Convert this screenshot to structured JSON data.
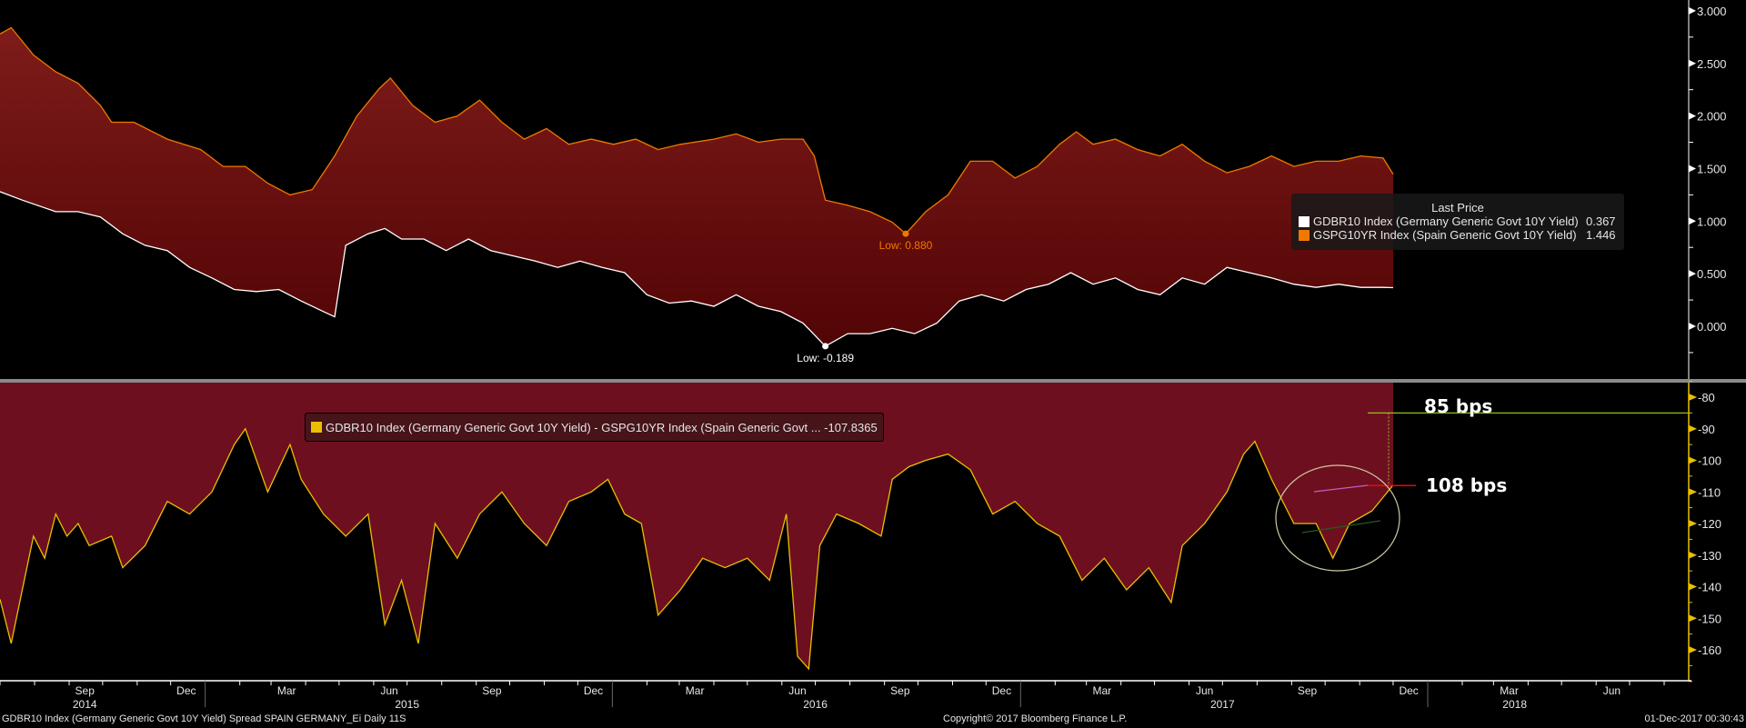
{
  "chart_data": [
    {
      "type": "area",
      "panel": "upper",
      "ylim": [
        -0.5,
        3.1
      ],
      "y_ticks": [
        3.0,
        2.5,
        2.0,
        1.5,
        1.0,
        0.5,
        0.0
      ],
      "y_tick_labels": [
        "3.000",
        "2.500",
        "2.000",
        "1.500",
        "1.000",
        "0.500",
        "0.000"
      ],
      "fill": "between series",
      "legend": {
        "title": "Last Price",
        "placement": "right",
        "entries": [
          {
            "label": "GDBR10 Index (Germany Generic Govt 10Y Yield)",
            "value": "0.367",
            "color": "#ffffff"
          },
          {
            "label": "GSPG10YR Index (Spain Generic Govt 10Y Yield)",
            "value": "1.446",
            "color": "#f07800"
          }
        ]
      },
      "annotations": [
        {
          "text": "Low: 0.880",
          "series": "GSPG10YR Index (Spain Generic Govt 10Y Yield)",
          "date": "2016-09-20",
          "value": 0.88
        },
        {
          "text": "Low: -0.189",
          "series": "GDBR10 Index (Germany Generic Govt 10Y Yield)",
          "date": "2016-07-10",
          "value": -0.189
        }
      ],
      "series": [
        {
          "name": "GSPG10YR Index (Spain Generic Govt 10Y Yield)",
          "color": "#f07800",
          "dates": [
            "2014-07-01",
            "2014-07-11",
            "2014-07-31",
            "2014-08-20",
            "2014-09-09",
            "2014-09-29",
            "2014-10-09",
            "2014-10-29",
            "2014-11-28",
            "2014-12-28",
            "2015-01-17",
            "2015-02-06",
            "2015-02-26",
            "2015-03-18",
            "2015-04-07",
            "2015-04-27",
            "2015-05-17",
            "2015-06-06",
            "2015-06-16",
            "2015-07-06",
            "2015-07-26",
            "2015-08-15",
            "2015-09-04",
            "2015-09-24",
            "2015-10-14",
            "2015-11-03",
            "2015-11-23",
            "2015-12-13",
            "2016-01-02",
            "2016-01-22",
            "2016-02-11",
            "2016-03-02",
            "2016-04-01",
            "2016-04-21",
            "2016-05-11",
            "2016-05-31",
            "2016-06-20",
            "2016-06-30",
            "2016-07-10",
            "2016-07-30",
            "2016-08-19",
            "2016-09-08",
            "2016-09-20",
            "2016-10-08",
            "2016-10-28",
            "2016-11-17",
            "2016-12-07",
            "2016-12-27",
            "2017-01-16",
            "2017-02-05",
            "2017-02-20",
            "2017-03-07",
            "2017-03-27",
            "2017-04-16",
            "2017-05-06",
            "2017-05-26",
            "2017-06-15",
            "2017-07-05",
            "2017-07-25",
            "2017-08-14",
            "2017-09-03",
            "2017-09-23",
            "2017-10-13",
            "2017-11-02",
            "2017-11-22",
            "2017-12-01"
          ],
          "values": [
            2.78,
            2.84,
            2.58,
            2.42,
            2.31,
            2.1,
            1.94,
            1.94,
            1.78,
            1.68,
            1.52,
            1.52,
            1.36,
            1.25,
            1.3,
            1.62,
            2.0,
            2.26,
            2.36,
            2.1,
            1.94,
            2.0,
            2.15,
            1.94,
            1.78,
            1.88,
            1.73,
            1.78,
            1.73,
            1.78,
            1.68,
            1.73,
            1.78,
            1.83,
            1.75,
            1.78,
            1.78,
            1.62,
            1.2,
            1.15,
            1.09,
            0.99,
            0.88,
            1.09,
            1.25,
            1.57,
            1.57,
            1.41,
            1.52,
            1.73,
            1.85,
            1.73,
            1.78,
            1.68,
            1.62,
            1.73,
            1.57,
            1.46,
            1.52,
            1.62,
            1.52,
            1.57,
            1.57,
            1.62,
            1.6,
            1.446
          ]
        },
        {
          "name": "GDBR10 Index (Germany Generic Govt 10Y Yield)",
          "color": "#ffffff",
          "dates": [
            "2014-07-01",
            "2014-07-21",
            "2014-08-20",
            "2014-09-09",
            "2014-09-29",
            "2014-10-19",
            "2014-11-08",
            "2014-11-28",
            "2014-12-18",
            "2015-01-07",
            "2015-01-27",
            "2015-02-16",
            "2015-03-08",
            "2015-03-28",
            "2015-04-17",
            "2015-04-27",
            "2015-05-07",
            "2015-05-27",
            "2015-06-11",
            "2015-06-26",
            "2015-07-16",
            "2015-08-05",
            "2015-08-25",
            "2015-09-14",
            "2015-10-04",
            "2015-10-24",
            "2015-11-13",
            "2015-12-03",
            "2015-12-23",
            "2016-01-12",
            "2016-02-01",
            "2016-02-21",
            "2016-03-12",
            "2016-04-01",
            "2016-04-21",
            "2016-05-11",
            "2016-05-31",
            "2016-06-20",
            "2016-07-10",
            "2016-07-30",
            "2016-08-19",
            "2016-09-08",
            "2016-09-28",
            "2016-10-18",
            "2016-11-07",
            "2016-11-27",
            "2016-12-17",
            "2017-01-06",
            "2017-01-26",
            "2017-02-15",
            "2017-03-07",
            "2017-03-27",
            "2017-04-16",
            "2017-05-06",
            "2017-05-26",
            "2017-06-15",
            "2017-07-05",
            "2017-07-25",
            "2017-08-14",
            "2017-09-03",
            "2017-09-23",
            "2017-10-13",
            "2017-11-02",
            "2017-11-22",
            "2017-12-01"
          ],
          "values": [
            1.28,
            1.2,
            1.09,
            1.09,
            1.04,
            0.88,
            0.77,
            0.72,
            0.56,
            0.46,
            0.35,
            0.33,
            0.35,
            0.24,
            0.14,
            0.09,
            0.77,
            0.88,
            0.93,
            0.83,
            0.83,
            0.72,
            0.83,
            0.72,
            0.67,
            0.62,
            0.56,
            0.62,
            0.56,
            0.51,
            0.3,
            0.22,
            0.24,
            0.19,
            0.3,
            0.19,
            0.14,
            0.03,
            -0.189,
            -0.07,
            -0.07,
            -0.02,
            -0.07,
            0.03,
            0.24,
            0.3,
            0.24,
            0.35,
            0.4,
            0.51,
            0.4,
            0.46,
            0.35,
            0.3,
            0.46,
            0.4,
            0.56,
            0.51,
            0.46,
            0.4,
            0.37,
            0.4,
            0.37,
            0.37,
            0.367
          ]
        }
      ]
    },
    {
      "type": "area",
      "panel": "lower",
      "ylim": [
        -170,
        -76
      ],
      "y_ticks": [
        -80,
        -90,
        -100,
        -110,
        -120,
        -130,
        -140,
        -150,
        -160
      ],
      "y_tick_labels": [
        "-80",
        "-90",
        "-100",
        "-110",
        "-120",
        "-130",
        "-140",
        "-150",
        "-160"
      ],
      "legend": {
        "placement": "top-left",
        "entries": [
          {
            "label": "GDBR10 Index (Germany Generic Govt 10Y Yield) - GSPG10YR Index (Spain Generic Govt ...",
            "value": "-107.8365",
            "color": "#e8c000"
          }
        ]
      },
      "annotations": [
        {
          "text": "85 bps",
          "value": -85,
          "type": "horizontal-line",
          "color": "#8fc21f"
        },
        {
          "text": "108 bps",
          "value": -108,
          "type": "horizontal-line",
          "color": "#ff0000"
        }
      ],
      "series": [
        {
          "name": "GDBR10 Index (Germany Generic Govt 10Y Yield) - GSPG10YR Index (Spain Generic Govt ...",
          "color": "#e8c000",
          "fill": "#6e0f20",
          "dates": [
            "2014-07-01",
            "2014-07-11",
            "2014-07-21",
            "2014-07-31",
            "2014-08-10",
            "2014-08-20",
            "2014-08-30",
            "2014-09-09",
            "2014-09-19",
            "2014-10-09",
            "2014-10-19",
            "2014-11-08",
            "2014-11-28",
            "2014-12-18",
            "2015-01-07",
            "2015-01-27",
            "2015-02-06",
            "2015-02-26",
            "2015-03-18",
            "2015-03-28",
            "2015-04-17",
            "2015-05-07",
            "2015-05-27",
            "2015-06-11",
            "2015-06-26",
            "2015-07-11",
            "2015-07-26",
            "2015-08-15",
            "2015-09-04",
            "2015-09-24",
            "2015-10-14",
            "2015-11-03",
            "2015-11-23",
            "2015-12-13",
            "2015-12-28",
            "2016-01-12",
            "2016-01-27",
            "2016-02-11",
            "2016-03-02",
            "2016-03-22",
            "2016-04-11",
            "2016-05-01",
            "2016-05-21",
            "2016-06-05",
            "2016-06-15",
            "2016-06-25",
            "2016-07-05",
            "2016-07-20",
            "2016-08-09",
            "2016-08-29",
            "2016-09-08",
            "2016-09-23",
            "2016-10-08",
            "2016-10-28",
            "2016-11-17",
            "2016-12-07",
            "2016-12-27",
            "2017-01-16",
            "2017-02-05",
            "2017-02-25",
            "2017-03-17",
            "2017-04-06",
            "2017-04-26",
            "2017-05-16",
            "2017-05-26",
            "2017-06-15",
            "2017-07-05",
            "2017-07-20",
            "2017-07-30",
            "2017-08-14",
            "2017-09-03",
            "2017-09-23",
            "2017-10-08",
            "2017-10-23",
            "2017-11-12",
            "2017-12-01"
          ],
          "values": [
            -144,
            -158,
            -141,
            -124,
            -131,
            -117,
            -124,
            -120,
            -127,
            -124,
            -134,
            -127,
            -113,
            -117,
            -110,
            -95,
            -90,
            -110,
            -95,
            -106,
            -117,
            -124,
            -117,
            -152,
            -138,
            -158,
            -120,
            -131,
            -117,
            -110,
            -120,
            -127,
            -113,
            -110,
            -106,
            -117,
            -120,
            -149,
            -141,
            -131,
            -134,
            -131,
            -138,
            -117,
            -162,
            -166,
            -127,
            -117,
            -120,
            -124,
            -106,
            -102,
            -100,
            -98,
            -103,
            -117,
            -113,
            -120,
            -124,
            -138,
            -131,
            -141,
            -134,
            -145,
            -127,
            -120,
            -110,
            -98,
            -94,
            -106,
            -120,
            -120,
            -131,
            -120,
            -116,
            -107.8365
          ]
        }
      ]
    }
  ],
  "x_axis": {
    "xlim": [
      "2014-07-01",
      "2018-08-23"
    ],
    "month_ticks": [
      {
        "label": "Sep",
        "date": "2014-09-15"
      },
      {
        "label": "Dec",
        "date": "2014-12-15"
      },
      {
        "label": "Mar",
        "date": "2015-03-15"
      },
      {
        "label": "Jun",
        "date": "2015-06-15"
      },
      {
        "label": "Sep",
        "date": "2015-09-15"
      },
      {
        "label": "Dec",
        "date": "2015-12-15"
      },
      {
        "label": "Mar",
        "date": "2016-03-15"
      },
      {
        "label": "Jun",
        "date": "2016-06-15"
      },
      {
        "label": "Sep",
        "date": "2016-09-15"
      },
      {
        "label": "Dec",
        "date": "2016-12-15"
      },
      {
        "label": "Mar",
        "date": "2017-03-15"
      },
      {
        "label": "Jun",
        "date": "2017-06-15"
      },
      {
        "label": "Sep",
        "date": "2017-09-15"
      },
      {
        "label": "Dec",
        "date": "2017-12-15"
      },
      {
        "label": "Mar",
        "date": "2018-03-15"
      },
      {
        "label": "Jun",
        "date": "2018-06-15"
      }
    ],
    "year_ticks": [
      {
        "label": "2014",
        "date": "2014-09-15"
      },
      {
        "label": "2015",
        "date": "2015-07-01"
      },
      {
        "label": "2016",
        "date": "2016-07-01"
      },
      {
        "label": "2017",
        "date": "2017-07-01"
      },
      {
        "label": "2018",
        "date": "2018-03-20"
      }
    ]
  },
  "annotations": {
    "bps_85": "85 bps",
    "bps_108": "108 bps"
  },
  "legend_upper": {
    "title": "Last Price",
    "rows": [
      {
        "name": "GDBR10 Index (Germany Generic Govt 10Y Yield)",
        "value": "0.367",
        "color": "#ffffff"
      },
      {
        "name": "GSPG10YR Index (Spain Generic Govt 10Y Yield)",
        "value": "1.446",
        "color": "#f07800"
      }
    ]
  },
  "legend_lower": {
    "label": "GDBR10 Index (Germany Generic Govt 10Y Yield) - GSPG10YR Index (Spain Generic Govt ... -107.8365",
    "color": "#e8c000"
  },
  "footer": {
    "left": "GDBR10 Index (Germany Generic Govt 10Y Yield) Spread SPAIN GERMANY_Ei  Daily 11S",
    "center": "Copyright© 2017 Bloomberg Finance L.P.",
    "right": "01-Dec-2017 00:30:43"
  }
}
